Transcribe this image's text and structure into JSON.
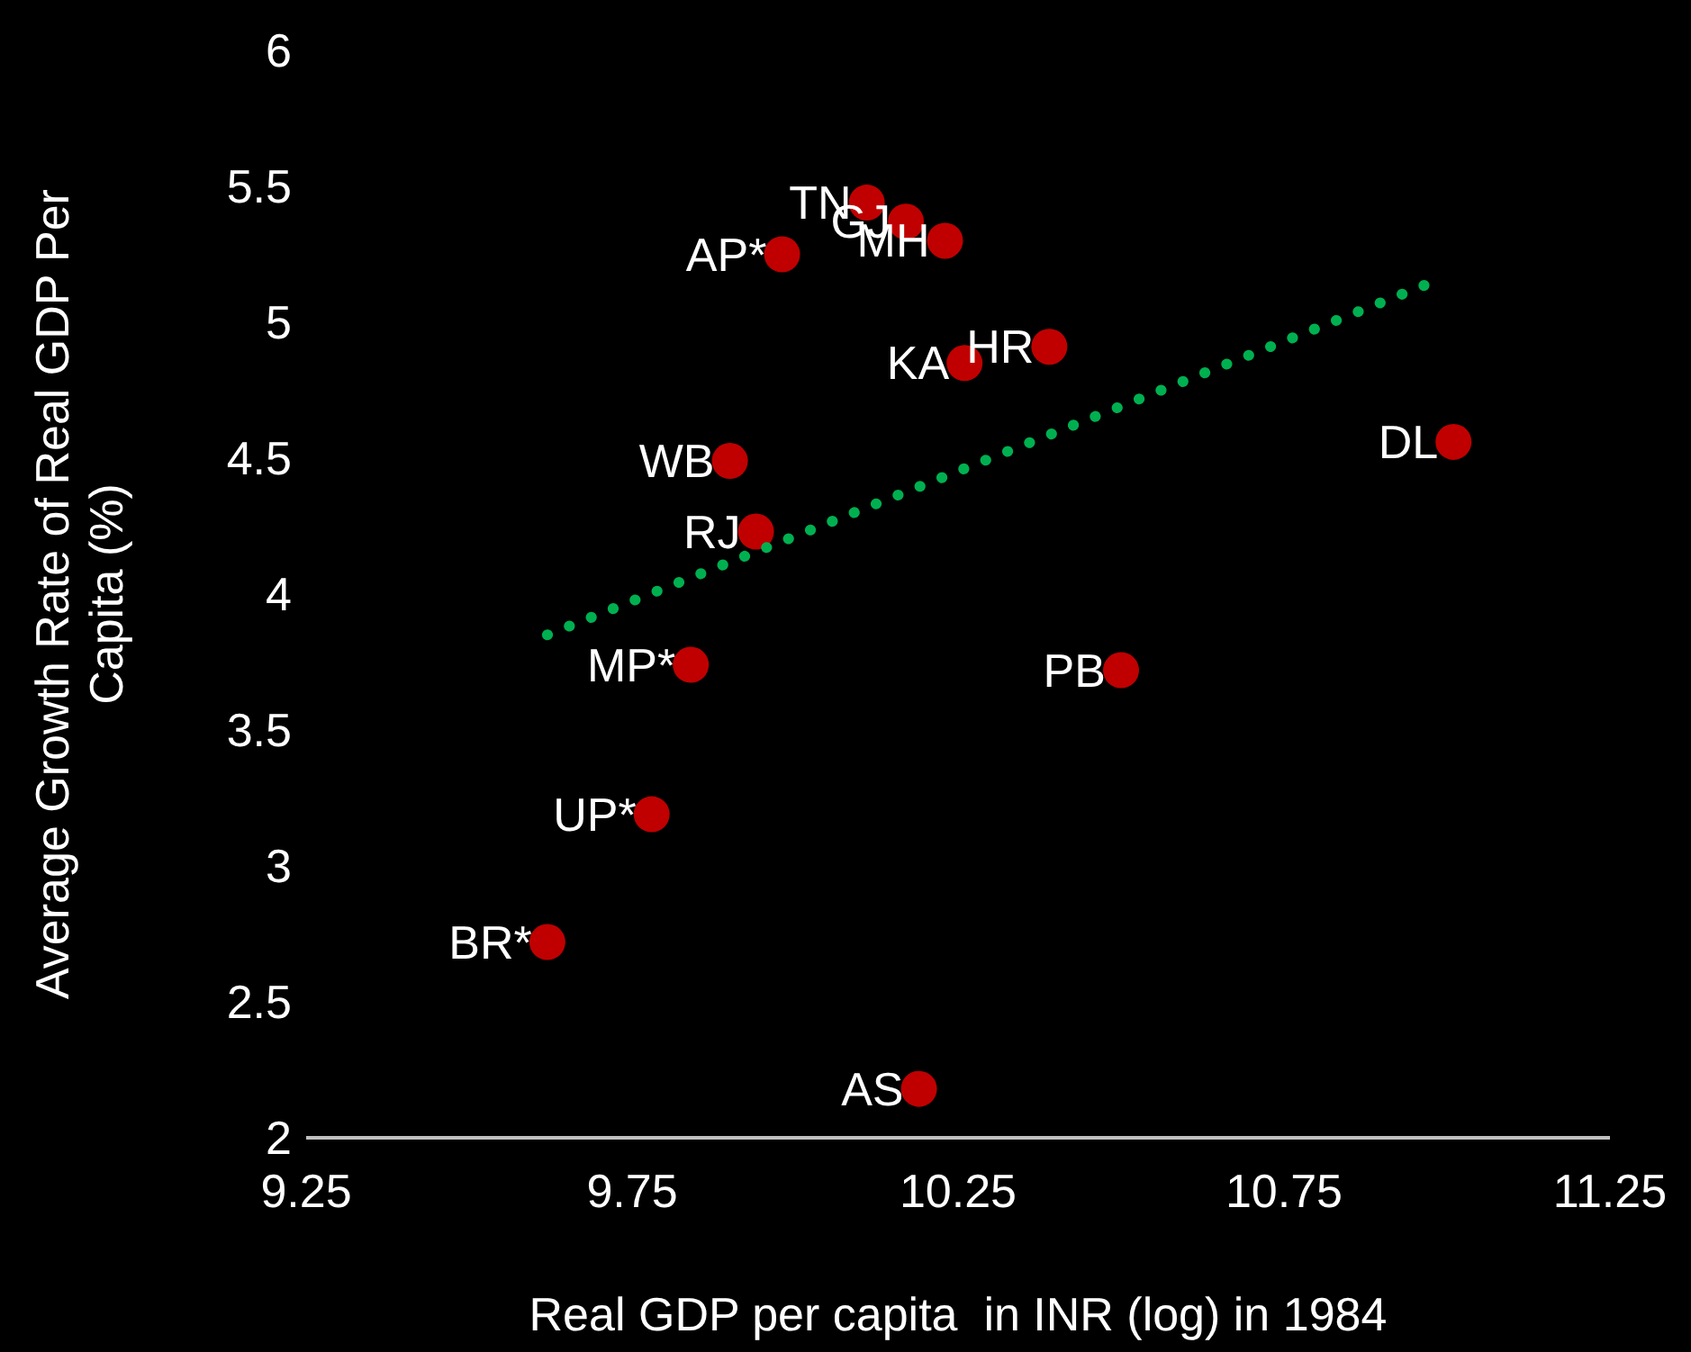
{
  "chart_data": {
    "type": "scatter",
    "xlabel": "Real GDP per capita  in INR (log) in 1984",
    "ylabel": "Average Growth Rate of Real GDP Per Capita (%)",
    "xlim": [
      9.25,
      11.25
    ],
    "xticks": [
      9.25,
      9.75,
      10.25,
      10.75,
      11.25
    ],
    "ylim": [
      2,
      6
    ],
    "yticks": [
      2,
      2.5,
      3,
      3.5,
      4,
      4.5,
      5,
      5.5,
      6
    ],
    "grid": false,
    "legend": false,
    "marker": "circle",
    "series": [
      {
        "type": "scatter",
        "color": "#c00000",
        "x": [
          10.11,
          10.17,
          10.23,
          9.98,
          10.39,
          10.26,
          9.9,
          9.94,
          9.84,
          10.5,
          11.01,
          9.78,
          9.62,
          10.19
        ],
        "values": [
          5.44,
          5.37,
          5.3,
          5.25,
          4.91,
          4.85,
          4.49,
          4.23,
          3.74,
          3.72,
          4.56,
          3.19,
          2.72,
          2.18
        ],
        "value_labels": [
          "TN",
          "GJ",
          "MH",
          "AP*",
          "HR",
          "KA",
          "WB",
          "RJ",
          "MP*",
          "PB",
          "DL",
          "UP*",
          "BR*",
          "AS"
        ]
      },
      {
        "type": "line",
        "color": "#00b050",
        "marker": "none",
        "line_style": "dotted",
        "x": [
          9.62,
          10.98
        ],
        "values": [
          3.85,
          5.15
        ]
      }
    ]
  }
}
